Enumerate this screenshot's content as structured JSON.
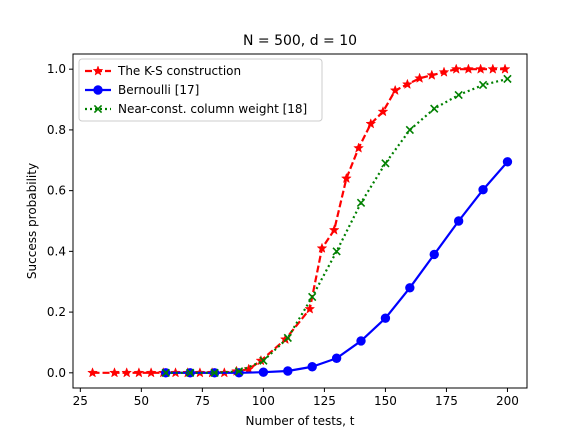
{
  "chart_data": {
    "type": "line",
    "title": "N = 500, d = 10",
    "xlabel": "Number of tests, t",
    "ylabel": "Success probability",
    "xlim": [
      22,
      208
    ],
    "ylim": [
      -0.05,
      1.05
    ],
    "xticks": [
      25,
      50,
      75,
      100,
      125,
      150,
      175,
      200
    ],
    "yticks": [
      0.0,
      0.2,
      0.4,
      0.6,
      0.8,
      1.0
    ],
    "xtick_labels": [
      "25",
      "50",
      "75",
      "100",
      "125",
      "150",
      "175",
      "200"
    ],
    "ytick_labels": [
      "0.0",
      "0.2",
      "0.4",
      "0.6",
      "0.8",
      "1.0"
    ],
    "grid": false,
    "legend_position": "top-left",
    "series": [
      {
        "name": "The K-S construction",
        "color": "#ff0000",
        "style": "dashed",
        "marker": "star",
        "x": [
          30,
          39,
          44,
          49,
          54,
          59,
          64,
          69,
          74,
          79,
          84,
          89,
          94,
          99,
          109,
          119,
          124,
          129,
          134,
          139,
          144,
          149,
          154,
          159,
          164,
          169,
          174,
          179,
          184,
          189,
          194,
          199
        ],
        "y": [
          0.0,
          0.0,
          0.0,
          0.0,
          0.0,
          0.0,
          0.0,
          0.0,
          0.0,
          0.0,
          0.0,
          0.005,
          0.012,
          0.04,
          0.11,
          0.21,
          0.41,
          0.47,
          0.64,
          0.74,
          0.82,
          0.86,
          0.93,
          0.95,
          0.97,
          0.98,
          0.99,
          1.0,
          1.0,
          1.0,
          1.0,
          1.0
        ]
      },
      {
        "name": "Bernoulli [17]",
        "color": "#0000ff",
        "style": "solid",
        "marker": "circle",
        "x": [
          60,
          70,
          80,
          90,
          100,
          110,
          120,
          130,
          140,
          150,
          160,
          170,
          180,
          190,
          200
        ],
        "y": [
          0.0,
          0.0,
          0.0,
          0.0,
          0.002,
          0.006,
          0.02,
          0.048,
          0.105,
          0.18,
          0.28,
          0.39,
          0.5,
          0.603,
          0.695
        ]
      },
      {
        "name": "Near-const. column weight [18]",
        "color": "#008000",
        "style": "dotted",
        "marker": "x",
        "x": [
          60,
          70,
          80,
          90,
          100,
          110,
          120,
          130,
          140,
          150,
          160,
          170,
          180,
          190,
          200
        ],
        "y": [
          0.0,
          0.0,
          0.0,
          0.005,
          0.04,
          0.115,
          0.25,
          0.4,
          0.56,
          0.69,
          0.8,
          0.87,
          0.915,
          0.948,
          0.968
        ]
      }
    ]
  }
}
